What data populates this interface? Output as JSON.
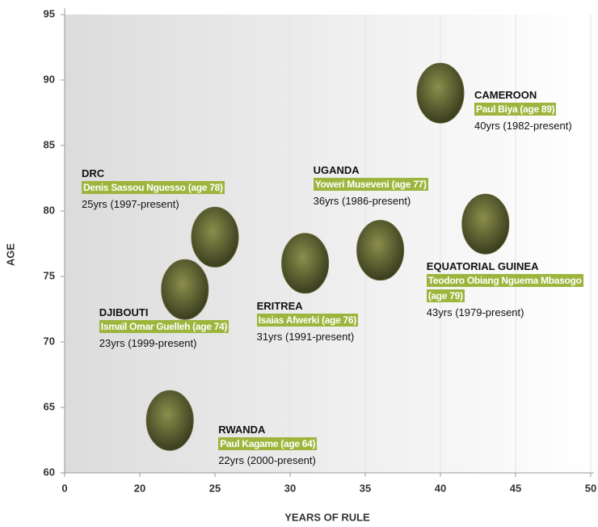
{
  "chart_data": {
    "type": "scatter",
    "xlabel": "YEARS OF RULE",
    "ylabel": "AGE",
    "xlim": [
      0,
      50
    ],
    "ylim": [
      60,
      95
    ],
    "xticks": [
      0,
      20,
      25,
      30,
      35,
      40,
      45,
      50
    ],
    "yticks": [
      60,
      65,
      70,
      75,
      80,
      85,
      90,
      95
    ],
    "xbreak": [
      0,
      20
    ],
    "grid": true,
    "point_color": "#5d6131",
    "label_color": "#9db53d",
    "points": [
      {
        "country": "CAMEROON",
        "leader": "Paul Biya (age 89)",
        "tenure": "40yrs (1982-present)",
        "x": 40,
        "y": 89
      },
      {
        "country": "DRC",
        "leader": "Denis Sassou Nguesso (age 78)",
        "tenure": "25yrs (1997-present)",
        "x": 25,
        "y": 78
      },
      {
        "country": "UGANDA",
        "leader": "Yoweri Museveni (age 77)",
        "tenure": "36yrs (1986-present)",
        "x": 36,
        "y": 77
      },
      {
        "country": "EQUATORIAL GUINEA",
        "leader": "Teodoro Obiang Nguema Mbasogo (age 79)",
        "tenure": "43yrs (1979-present)",
        "x": 43,
        "y": 79
      },
      {
        "country": "ERITREA",
        "leader": "Isaias Afwerki (age 76)",
        "tenure": "31yrs (1991-present)",
        "x": 31,
        "y": 76
      },
      {
        "country": "DJIBOUTI",
        "leader": "Ismaïl Omar Guelleh (age 74)",
        "tenure": "23yrs (1999-present)",
        "x": 23,
        "y": 74
      },
      {
        "country": "RWANDA",
        "leader": "Paul Kagame (age 64)",
        "tenure": "22yrs (2000-present)",
        "x": 22,
        "y": 64
      }
    ]
  }
}
